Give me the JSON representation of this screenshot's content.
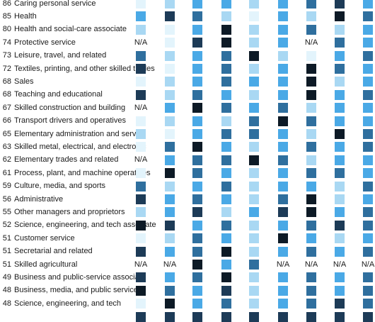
{
  "chart_data": {
    "type": "heatmap",
    "na_label": "N/A",
    "colors": {
      "1": "#e3f4fc",
      "2": "#a9d8f3",
      "3": "#4aa9e6",
      "4": "#2f6f9e",
      "5": "#1d3b57",
      "6": "#0d1a26"
    },
    "rows": [
      {
        "score": "86",
        "label": "Caring personal service",
        "values": [
          1,
          2,
          3,
          3,
          2,
          3,
          4,
          5,
          3
        ]
      },
      {
        "score": "85",
        "label": "Health",
        "values": [
          3,
          5,
          4,
          2,
          1,
          3,
          2,
          6,
          4
        ]
      },
      {
        "score": "80",
        "label": "Health and social-care associate",
        "values": [
          2,
          1,
          3,
          6,
          2,
          3,
          4,
          2,
          3
        ]
      },
      {
        "score": "74",
        "label": "Protective service",
        "values": [
          null,
          1,
          5,
          6,
          2,
          3,
          null,
          4,
          3
        ]
      },
      {
        "score": "73",
        "label": "Leisure, travel, and related",
        "values": [
          4,
          2,
          3,
          4,
          6,
          2,
          1,
          3,
          4
        ]
      },
      {
        "score": "72",
        "label": "Textiles, printing, and other skilled trades",
        "values": [
          5,
          1,
          3,
          4,
          2,
          3,
          6,
          4,
          3
        ]
      },
      {
        "score": "68",
        "label": "Sales",
        "values": [
          1,
          2,
          3,
          4,
          3,
          3,
          6,
          2,
          3
        ]
      },
      {
        "score": "68",
        "label": "Teaching and educational",
        "values": [
          5,
          2,
          4,
          3,
          2,
          3,
          6,
          3,
          4
        ]
      },
      {
        "score": "67",
        "label": "Skilled construction and building",
        "values": [
          null,
          3,
          6,
          4,
          3,
          4,
          2,
          3,
          3
        ]
      },
      {
        "score": "66",
        "label": "Transport drivers and operatives",
        "values": [
          1,
          2,
          3,
          2,
          4,
          6,
          4,
          3,
          3
        ]
      },
      {
        "score": "65",
        "label": "Elementary administration and service",
        "values": [
          2,
          1,
          3,
          4,
          4,
          3,
          2,
          6,
          4
        ]
      },
      {
        "score": "63",
        "label": "Skilled metal, electrical, and electronic",
        "values": [
          1,
          4,
          6,
          3,
          2,
          3,
          4,
          3,
          4
        ]
      },
      {
        "score": "62",
        "label": "Elementary trades and related",
        "values": [
          null,
          3,
          4,
          4,
          6,
          4,
          2,
          3,
          3
        ]
      },
      {
        "score": "61",
        "label": "Process, plant, and machine operatives",
        "values": [
          1,
          6,
          4,
          3,
          2,
          3,
          4,
          4,
          3
        ]
      },
      {
        "score": "59",
        "label": "Culture, media, and sports",
        "values": [
          4,
          2,
          3,
          4,
          2,
          3,
          3,
          2,
          4
        ]
      },
      {
        "score": "56",
        "label": "Administrative",
        "values": [
          5,
          3,
          4,
          3,
          2,
          4,
          6,
          2,
          3
        ]
      },
      {
        "score": "55",
        "label": "Other managers and proprietors",
        "values": [
          2,
          3,
          5,
          2,
          3,
          5,
          6,
          3,
          4
        ]
      },
      {
        "score": "52",
        "label": "Science, engineering, and tech associate",
        "values": [
          6,
          5,
          3,
          4,
          2,
          3,
          4,
          5,
          4
        ]
      },
      {
        "score": "51",
        "label": "Customer service",
        "values": [
          1,
          2,
          4,
          3,
          2,
          6,
          3,
          2,
          3
        ]
      },
      {
        "score": "51",
        "label": "Secretarial and related",
        "values": [
          5,
          3,
          4,
          6,
          2,
          3,
          4,
          3,
          4
        ]
      },
      {
        "score": "51",
        "label": "Skilled agricultural",
        "values": [
          null,
          null,
          6,
          3,
          4,
          null,
          null,
          null,
          null
        ]
      },
      {
        "score": "49",
        "label": "Business and public-service associate",
        "values": [
          5,
          3,
          4,
          6,
          2,
          3,
          4,
          3,
          4
        ]
      },
      {
        "score": "48",
        "label": "Business, media, and public service",
        "values": [
          6,
          4,
          3,
          5,
          2,
          3,
          4,
          3,
          4
        ]
      },
      {
        "score": "48",
        "label": "Science, engineering, and tech",
        "values": [
          1,
          6,
          3,
          4,
          2,
          3,
          4,
          5,
          4
        ]
      },
      {
        "score": "",
        "label": "",
        "values": [
          5,
          5,
          5,
          5,
          5,
          5,
          5,
          5,
          5
        ]
      }
    ]
  }
}
